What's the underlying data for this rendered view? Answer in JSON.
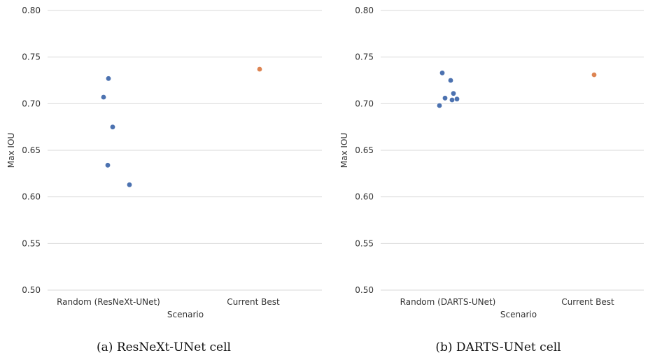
{
  "chart_data": [
    {
      "type": "scatter",
      "title": "",
      "xlabel": "Scenario",
      "ylabel": "Max IOU",
      "categories": [
        "Random (ResNeXt-UNet)",
        "Current Best"
      ],
      "ylim": [
        0.5,
        0.8
      ],
      "yticks": [
        "0.50",
        "0.55",
        "0.60",
        "0.65",
        "0.70",
        "0.75",
        "0.80"
      ],
      "grid": true,
      "caption": "(a) ResNeXt-UNet cell",
      "series": [
        {
          "category": "Random (ResNeXt-UNet)",
          "color": "#4c72b0",
          "values": [
            0.727,
            0.707,
            0.675,
            0.634,
            0.613
          ]
        },
        {
          "category": "Current Best",
          "color": "#dd8452",
          "values": [
            0.737
          ]
        }
      ]
    },
    {
      "type": "scatter",
      "title": "",
      "xlabel": "Scenario",
      "ylabel": "Max IOU",
      "categories": [
        "Random (DARTS-UNet)",
        "Current Best"
      ],
      "ylim": [
        0.5,
        0.8
      ],
      "yticks": [
        "0.50",
        "0.55",
        "0.60",
        "0.65",
        "0.70",
        "0.75",
        "0.80"
      ],
      "grid": true,
      "caption": "(b) DARTS-UNet cell",
      "series": [
        {
          "category": "Random (DARTS-UNet)",
          "color": "#4c72b0",
          "values": [
            0.733,
            0.725,
            0.711,
            0.706,
            0.705,
            0.704,
            0.698
          ]
        },
        {
          "category": "Current Best",
          "color": "#dd8452",
          "values": [
            0.731
          ]
        }
      ]
    }
  ]
}
